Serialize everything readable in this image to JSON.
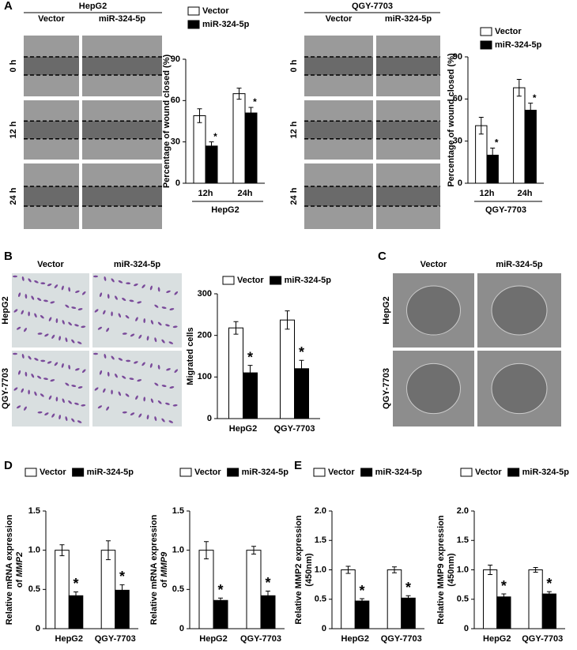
{
  "panels": {
    "A": {
      "label": "A",
      "groups": [
        {
          "title": "HepG2",
          "columns": [
            "Vector",
            "miR-324-5p"
          ],
          "rows": [
            "0 h",
            "12 h",
            "24 h"
          ]
        },
        {
          "title": "QGY-7703",
          "columns": [
            "Vector",
            "miR-324-5p"
          ],
          "rows": [
            "0 h",
            "12 h",
            "24 h"
          ]
        }
      ]
    },
    "B": {
      "label": "B",
      "columns": [
        "Vector",
        "miR-324-5p"
      ],
      "rows": [
        "HepG2",
        "QGY-7703"
      ]
    },
    "C": {
      "label": "C",
      "columns": [
        "Vector",
        "miR-324-5p"
      ],
      "rows": [
        "HepG2",
        "QGY-7703"
      ]
    },
    "D": {
      "label": "D"
    },
    "E": {
      "label": "E"
    }
  },
  "chart_data": [
    {
      "type": "bar",
      "y_label": "Percentage of wound closed (%)",
      "x_label": "HepG2",
      "categories": [
        "12h",
        "24h"
      ],
      "series": [
        {
          "name": "Vector",
          "color": "#ffffff",
          "values": [
            49,
            65
          ],
          "errors": [
            5,
            4
          ]
        },
        {
          "name": "miR-324-5p",
          "color": "#000000",
          "values": [
            27,
            51
          ],
          "errors": [
            3,
            4
          ],
          "annotations": [
            "*",
            "*"
          ]
        }
      ],
      "ylim": [
        0,
        90
      ],
      "yticks": [
        0,
        30,
        60,
        90
      ]
    },
    {
      "type": "bar",
      "y_label": "Percentage of wound closed (%)",
      "x_label": "QGY-7703",
      "categories": [
        "12h",
        "24h"
      ],
      "series": [
        {
          "name": "Vector",
          "color": "#ffffff",
          "values": [
            41,
            68
          ],
          "errors": [
            6,
            6
          ]
        },
        {
          "name": "miR-324-5p",
          "color": "#000000",
          "values": [
            20,
            52
          ],
          "errors": [
            5,
            5
          ],
          "annotations": [
            "*",
            "*"
          ]
        }
      ],
      "ylim": [
        0,
        90
      ],
      "yticks": [
        0,
        30,
        60,
        90
      ]
    },
    {
      "type": "bar",
      "y_label": "Migrated cells",
      "categories": [
        "HepG2",
        "QGY-7703"
      ],
      "series": [
        {
          "name": "Vector",
          "color": "#ffffff",
          "values": [
            218,
            237
          ],
          "errors": [
            15,
            22
          ]
        },
        {
          "name": "miR-324-5p",
          "color": "#000000",
          "values": [
            110,
            120
          ],
          "errors": [
            18,
            20
          ],
          "annotations": [
            "*",
            "*"
          ]
        }
      ],
      "ylim": [
        0,
        300
      ],
      "yticks": [
        0,
        100,
        200,
        300
      ]
    },
    {
      "type": "bar",
      "y_label": "Relative mRNA expression",
      "y_label_2": "of",
      "y_label_gene": "MMP2",
      "categories": [
        "HepG2",
        "QGY-7703"
      ],
      "series": [
        {
          "name": "Vector",
          "color": "#ffffff",
          "values": [
            1.0,
            1.0
          ],
          "errors": [
            0.07,
            0.12
          ]
        },
        {
          "name": "miR-324-5p",
          "color": "#000000",
          "values": [
            0.42,
            0.49
          ],
          "errors": [
            0.05,
            0.07
          ],
          "annotations": [
            "*",
            "*"
          ]
        }
      ],
      "ylim": [
        0,
        1.5
      ],
      "yticks": [
        0,
        0.5,
        {
          "value": 1,
          "label": "1.0"
        },
        1.5
      ]
    },
    {
      "type": "bar",
      "y_label": "Relative mRNA expression",
      "y_label_2": "of",
      "y_label_gene": "MMP9",
      "categories": [
        "HepG2",
        "QGY-7703"
      ],
      "series": [
        {
          "name": "Vector",
          "color": "#ffffff",
          "values": [
            1.0,
            1.0
          ],
          "errors": [
            0.11,
            0.05
          ]
        },
        {
          "name": "miR-324-5p",
          "color": "#000000",
          "values": [
            0.36,
            0.42
          ],
          "errors": [
            0.03,
            0.06
          ],
          "annotations": [
            "*",
            "*"
          ]
        }
      ],
      "ylim": [
        0,
        1.5
      ],
      "yticks": [
        0,
        0.5,
        {
          "value": 1,
          "label": "1.0"
        },
        1.5
      ]
    },
    {
      "type": "bar",
      "y_label": "Relative MMP2 expression",
      "y_label_2": "(450nm)",
      "categories": [
        "HepG2",
        "QGY-7703"
      ],
      "series": [
        {
          "name": "Vector",
          "color": "#ffffff",
          "values": [
            1.0,
            1.0
          ],
          "errors": [
            0.06,
            0.05
          ]
        },
        {
          "name": "miR-324-5p",
          "color": "#000000",
          "values": [
            0.47,
            0.52
          ],
          "errors": [
            0.04,
            0.04
          ],
          "annotations": [
            "*",
            "*"
          ]
        }
      ],
      "ylim": [
        0,
        2
      ],
      "yticks": [
        0,
        0.5,
        {
          "value": 1,
          "label": "1.0"
        },
        1.5,
        {
          "value": 2,
          "label": "2.0"
        }
      ]
    },
    {
      "type": "bar",
      "y_label": "Relative MMP9 expression",
      "y_label_2": "(450nm)",
      "categories": [
        "HepG2",
        "QGY-7703"
      ],
      "series": [
        {
          "name": "Vector",
          "color": "#ffffff",
          "values": [
            1.0,
            1.0
          ],
          "errors": [
            0.08,
            0.04
          ]
        },
        {
          "name": "miR-324-5p",
          "color": "#000000",
          "values": [
            0.54,
            0.59
          ],
          "errors": [
            0.05,
            0.04
          ],
          "annotations": [
            "*",
            "*"
          ]
        }
      ],
      "ylim": [
        0,
        2
      ],
      "yticks": [
        0,
        0.5,
        {
          "value": 1,
          "label": "1.0"
        },
        1.5,
        {
          "value": 2,
          "label": "2.0"
        }
      ]
    }
  ]
}
